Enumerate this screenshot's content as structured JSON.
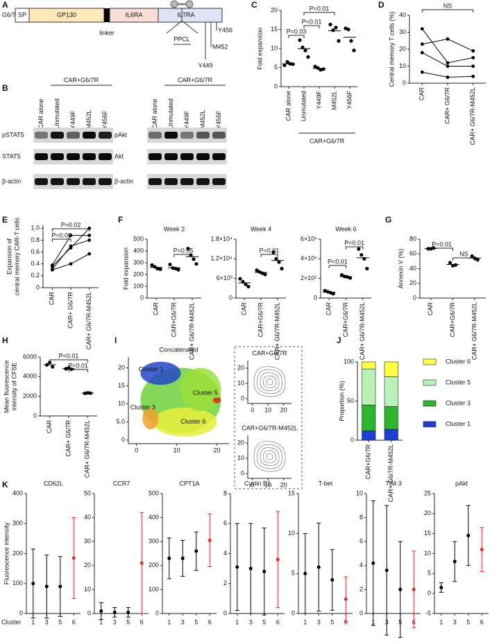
{
  "panel_labels": [
    "A",
    "B",
    "C",
    "D",
    "E",
    "F",
    "G",
    "H",
    "I",
    "J",
    "K"
  ],
  "diagram": {
    "construct": "G6/7R",
    "domains": [
      "SP",
      "GP130",
      "IL6RA",
      "IL7RA"
    ],
    "linker": "linker",
    "motif": "PPCL",
    "sites": [
      "Y456",
      "M452",
      "Y449"
    ]
  },
  "blots": [
    {
      "group": "CAR+G6/7R",
      "lanes": [
        "CAR alone",
        "Unmutated",
        "Y449F",
        "M452L",
        "Y456F"
      ],
      "rows": [
        "pSTAT5",
        "STAT5",
        "β-actin"
      ]
    },
    {
      "group": "CAR+G6/7R",
      "lanes": [
        "CAR alone",
        "Unmutated",
        "Y449F",
        "M452L",
        "Y456F"
      ],
      "rows": [
        "pAkt",
        "Akt",
        "β-actin"
      ]
    }
  ],
  "chart_data": [
    {
      "type": "dot",
      "ylabel": "Fold expansion",
      "categories": [
        "CAR alone",
        "Unmutated",
        "Y449F",
        "M452L",
        "Y456F"
      ],
      "group_label": "CAR+G6/7R",
      "values": [
        [
          5.6,
          6.5,
          6.0,
          5.9
        ],
        [
          12.2,
          10.3,
          9.5,
          7.8
        ],
        [
          5.3,
          4.9,
          4.4,
          4.6
        ],
        [
          16.3,
          14.8,
          15.5,
          12.0
        ],
        [
          15.3,
          15.0,
          12.0,
          9.5
        ]
      ],
      "ylim": [
        0,
        20
      ],
      "yticks": [
        0,
        5,
        10,
        15,
        20
      ],
      "annotations": [
        "P=0.03",
        "P<0.01",
        "P=0.01"
      ],
      "color": "#000000"
    },
    {
      "type": "paired",
      "ylabel": "Central memory T cells (%)",
      "categories": [
        "CAR",
        "CAR+ G6/7R",
        "CAR+ G6/7R-M452L"
      ],
      "series": [
        {
          "values": [
            32,
            12,
            15
          ]
        },
        {
          "values": [
            23,
            26,
            19
          ]
        },
        {
          "values": [
            18,
            10,
            10
          ]
        },
        {
          "values": [
            6.5,
            3.5,
            4
          ]
        }
      ],
      "ylim": [
        0,
        40
      ],
      "yticks": [
        0,
        10,
        20,
        30,
        40
      ],
      "annotations": [
        "NS"
      ],
      "color": "#000000"
    },
    {
      "type": "paired",
      "ylabel": [
        "Expansion of",
        "central memory CAR-T cells"
      ],
      "categories": [
        "CAR",
        "CAR+ G6/7R",
        "CAR+ G6/7R-M452L"
      ],
      "series": [
        {
          "values": [
            0.38,
            0.88,
            0.88
          ]
        },
        {
          "values": [
            0.36,
            0.67,
            1.0
          ]
        },
        {
          "values": [
            0.31,
            0.7,
            0.8
          ]
        },
        {
          "values": [
            0.3,
            0.4,
            0.57
          ]
        }
      ],
      "ylim": [
        0,
        1.05
      ],
      "yticks": [
        0,
        0.2,
        0.4,
        0.6,
        0.8,
        {
          "value": 1,
          "label": "1.0"
        }
      ],
      "annotations": [
        "P=0.06",
        "P=0.02"
      ],
      "color": "#000000"
    },
    {
      "type": "dot",
      "title": "Week 2",
      "ylabel": "Fold expansion",
      "categories": [
        "CAR",
        "CAR+G6/7R",
        "CAR+ G6/7R-M452L"
      ],
      "values": [
        [
          280,
          265,
          250,
          245
        ],
        [
          285,
          255,
          250,
          240
        ],
        [
          420,
          365,
          330,
          290
        ]
      ],
      "ylim": [
        0,
        500
      ],
      "yticks": [
        0,
        100,
        200,
        300,
        400,
        500
      ],
      "annotations": [
        "P=0.05"
      ],
      "color": "#000000"
    },
    {
      "type": "dot",
      "title": "Week 4",
      "categories": [
        "CAR",
        "CAR+G6/7R",
        "CAR+ G6/7R-M452L"
      ],
      "values": [
        [
          5900,
          5000,
          4200,
          3500
        ],
        [
          8500,
          8000,
          7600,
          7200
        ],
        [
          14000,
          12000,
          11000,
          9000
        ]
      ],
      "ylim": [
        0,
        18000
      ],
      "yticks": [
        0,
        {
          "value": 6000,
          "label": "6×10³"
        },
        {
          "value": 12000,
          "label": "1.2×10⁴"
        },
        {
          "value": 18000,
          "label": "1.8×10⁴"
        }
      ],
      "annotations": [
        "P=0.01"
      ],
      "color": "#000000"
    },
    {
      "type": "dot",
      "title": "Week 6",
      "categories": [
        "CAR",
        "CAR+G6/7R",
        "CAR+ G6/7R-M452L"
      ],
      "values": [
        [
          75000,
          65000,
          55000,
          45000
        ],
        [
          235000,
          220000,
          215000,
          205000
        ],
        [
          500000,
          440000,
          400000,
          300000
        ]
      ],
      "ylim": [
        0,
        600000
      ],
      "yticks": [
        0,
        {
          "value": 200000,
          "label": "2×10⁵"
        },
        {
          "value": 400000,
          "label": "4×10⁵"
        },
        {
          "value": 600000,
          "label": "6×10⁵"
        }
      ],
      "annotations": [
        "P<0.01",
        "P<0.01"
      ],
      "color": "#000000"
    },
    {
      "type": "dot",
      "ylabel": "Annexin V (%)",
      "categories": [
        "CAR",
        "CAR+G6/7R",
        "CAR+ G6/7R-M452L"
      ],
      "values": [
        [
          67,
          67,
          68
        ],
        [
          48,
          44,
          45
        ],
        [
          57,
          54,
          52
        ]
      ],
      "ylim": [
        0,
        80
      ],
      "yticks": [
        0,
        20,
        40,
        60,
        80
      ],
      "annotations": [
        "P=0.01",
        "NS"
      ],
      "color": "#000000"
    },
    {
      "type": "dot",
      "ylabel": [
        "Mean fluorescence",
        "intensity of CFSE"
      ],
      "categories": [
        "CAR",
        "CAR+ G6/7R",
        "CAR+ G6/7R-M452L"
      ],
      "values": [
        [
          5200,
          5450,
          5000
        ],
        [
          4800,
          4900,
          4750
        ],
        [
          2300,
          2350,
          2320
        ]
      ],
      "ylim": [
        0,
        6000
      ],
      "yticks": [
        0,
        2000,
        4000,
        6000
      ],
      "annotations": [
        "P<0.01",
        "P<0.01"
      ],
      "color": "#000000"
    },
    {
      "type": "embedding",
      "title": "Concatenated",
      "xlim": [
        -2,
        23
      ],
      "ylim": [
        -1,
        23
      ],
      "xticks": [
        0,
        10,
        20
      ],
      "yticks": [
        0,
        {
          "value": 5,
          "label": "5.0"
        },
        10,
        15,
        20
      ],
      "clusters": [
        "Cluster 1",
        "Cluster 5",
        "Cluster 3",
        "Cluster 6"
      ],
      "insets": [
        {
          "title": "CAR+G6/7R",
          "xlim": [
            -3,
            25
          ],
          "ylim": [
            -3,
            25
          ],
          "xticks": [
            0,
            10,
            20
          ],
          "yticks": [
            0,
            10,
            20
          ]
        },
        {
          "title": "CAR+G6/7R-M452L",
          "xlim": [
            -3,
            25
          ],
          "ylim": [
            -3,
            25
          ],
          "xticks": [
            0,
            10,
            20
          ],
          "yticks": [
            0,
            10,
            20
          ]
        }
      ]
    },
    {
      "type": "stacked_bar",
      "ylabel": "Proportion (%)",
      "categories": [
        "CAR+G6/7R",
        "CAR+ G6/7R-M452L"
      ],
      "series": [
        {
          "name": "Cluster 1",
          "color": "#1f3fd0",
          "values": [
            12,
            14
          ]
        },
        {
          "name": "Cluster 3",
          "color": "#2db52d",
          "values": [
            33,
            29
          ]
        },
        {
          "name": "Cluster 5",
          "color": "#b9f2b9",
          "values": [
            46,
            38
          ]
        },
        {
          "name": "Cluster 6",
          "color": "#ffff44",
          "values": [
            9,
            19
          ]
        }
      ],
      "ylim": [
        0,
        100
      ],
      "yticks": [
        0,
        50,
        100
      ]
    },
    {
      "type": "errorbar",
      "title": "CD62L",
      "ylabel": "Fluorescence intensity",
      "xlabel": "Cluster",
      "categories": [
        "1",
        "3",
        "5",
        "6"
      ],
      "values": [
        100,
        90,
        90,
        185
      ],
      "errors": [
        115,
        105,
        100,
        135
      ],
      "colors": [
        "#000000",
        "#000000",
        "#000000",
        "#e8262a"
      ],
      "ylim": [
        0,
        400
      ],
      "yticks": [
        0,
        100,
        200,
        300,
        400
      ]
    },
    {
      "type": "errorbar",
      "title": "CCR7",
      "categories": [
        "1",
        "3",
        "5",
        "6"
      ],
      "values": [
        1,
        0.5,
        0.5,
        21
      ],
      "errors": [
        3.5,
        2,
        2,
        21
      ],
      "colors": [
        "#000000",
        "#000000",
        "#000000",
        "#e8262a"
      ],
      "ylim": [
        0,
        50
      ],
      "yticks": [
        0,
        10,
        20,
        30,
        40,
        50
      ]
    },
    {
      "type": "errorbar",
      "title": "CPT1A",
      "categories": [
        "1",
        "3",
        "5",
        "6"
      ],
      "values": [
        230,
        230,
        260,
        305
      ],
      "errors": [
        85,
        75,
        80,
        110
      ],
      "colors": [
        "#000000",
        "#000000",
        "#000000",
        "#e8262a"
      ],
      "ylim": [
        0,
        500
      ],
      "yticks": [
        0,
        100,
        200,
        300,
        400,
        500
      ]
    },
    {
      "type": "errorbar",
      "title": "Cyclin B1",
      "categories": [
        "1",
        "3",
        "5",
        "6"
      ],
      "values": [
        3.1,
        3.0,
        2.8,
        3.6
      ],
      "errors": [
        2.9,
        3.0,
        2.9,
        3.2
      ],
      "colors": [
        "#000000",
        "#000000",
        "#000000",
        "#e8262a"
      ],
      "ylim": [
        0,
        8
      ],
      "yticks": [
        0,
        2,
        4,
        6,
        8
      ]
    },
    {
      "type": "errorbar",
      "title": "T-bet",
      "categories": [
        "1",
        "3",
        "5",
        "6"
      ],
      "values": [
        5,
        5.8,
        4.2,
        1.8
      ],
      "errors": [
        5,
        5.5,
        3.8,
        2.8
      ],
      "colors": [
        "#000000",
        "#000000",
        "#000000",
        "#e8262a"
      ],
      "ylim": [
        0,
        15
      ],
      "yticks": [
        0,
        5,
        10,
        15
      ]
    },
    {
      "type": "errorbar",
      "title": "TIM-3",
      "categories": [
        "1",
        "3",
        "5",
        "6"
      ],
      "values": [
        4.2,
        3.6,
        2,
        2
      ],
      "errors": [
        5.2,
        5.4,
        4,
        3.2
      ],
      "colors": [
        "#000000",
        "#000000",
        "#000000",
        "#e8262a"
      ],
      "ylim": [
        0,
        10
      ],
      "yticks": [
        0,
        2,
        4,
        6,
        8,
        10
      ]
    },
    {
      "type": "errorbar",
      "title": "pAkt",
      "categories": [
        "1",
        "3",
        "5",
        "6"
      ],
      "values": [
        1.5,
        8,
        14.5,
        11
      ],
      "errors": [
        1.2,
        5,
        7.5,
        5.5
      ],
      "colors": [
        "#000000",
        "#000000",
        "#000000",
        "#e8262a"
      ],
      "ylim": [
        -5,
        25
      ],
      "yticks": [
        -5,
        0,
        5,
        10,
        15,
        20,
        25
      ]
    }
  ]
}
